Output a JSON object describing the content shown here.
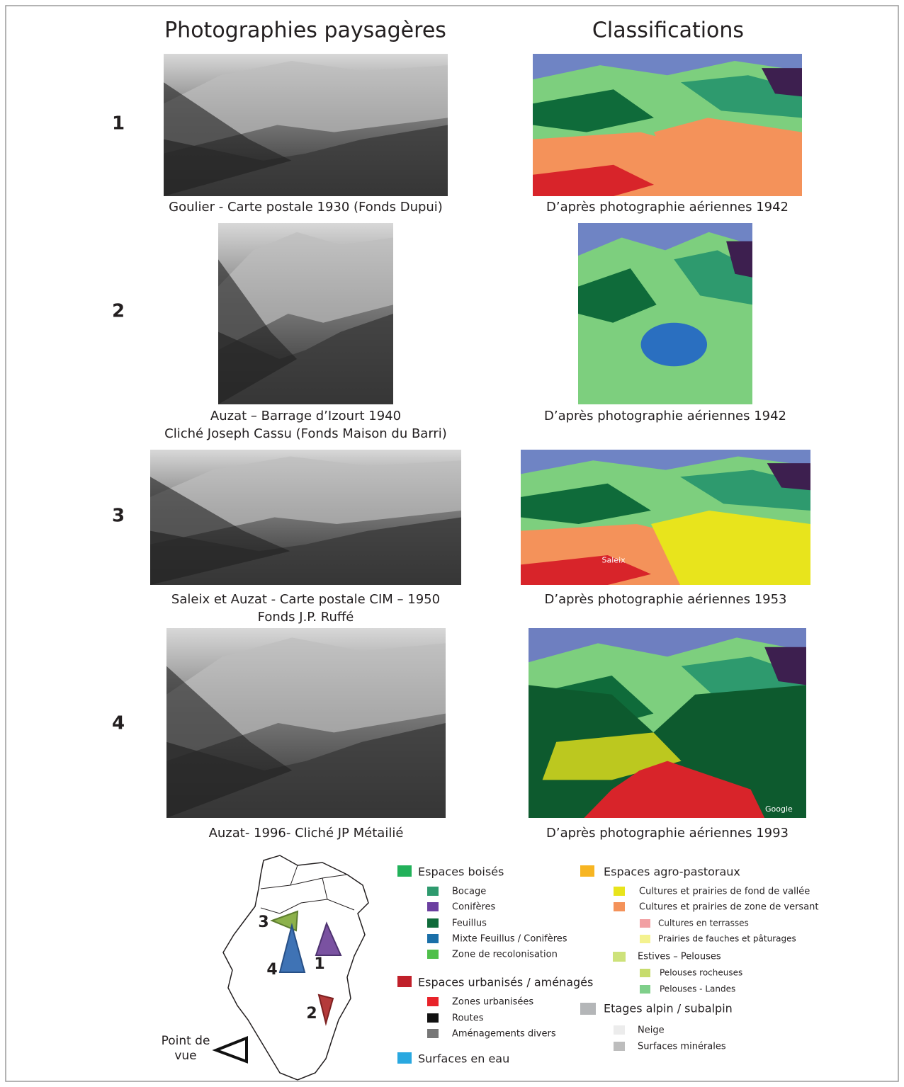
{
  "headers": {
    "photos": "Photographies paysagères",
    "classifications": "Classifications"
  },
  "rows": [
    {
      "number": "1",
      "photo_caption": [
        "Goulier  - Carte postale 1930  (Fonds Dupui)"
      ],
      "classification_caption": "D’après photographie aériennes 1942"
    },
    {
      "number": "2",
      "photo_caption": [
        "Auzat – Barrage d’Izourt 1940",
        "Cliché Joseph Cassu (Fonds Maison du Barri)"
      ],
      "classification_caption": "D’après photographie aériennes 1942"
    },
    {
      "number": "3",
      "photo_caption": [
        "Saleix et Auzat - Carte postale CIM  – 1950",
        "Fonds J.P.  Ruffé"
      ],
      "classification_caption": "D’après photographie aériennes 1953"
    },
    {
      "number": "4",
      "photo_caption": [
        "Auzat-  1996-  Cliché JP Métailié"
      ],
      "classification_caption": "D’après photographie aériennes 1993"
    }
  ],
  "image_labels": {
    "saleix": "Saleix",
    "google": "Google"
  },
  "map": {
    "labels": [
      "3",
      "4",
      "1",
      "2"
    ],
    "point_de_vue": [
      "Point de",
      "vue"
    ]
  },
  "legend": {
    "left": [
      {
        "label": "Espaces boisés",
        "items": [
          "Bocage",
          "Conifères",
          "Feuillus",
          "Mixte Feuillus / Conifères",
          "Zone de recolonisation"
        ]
      },
      {
        "label": "Espaces urbanisés / aménagés",
        "items": [
          "Zones urbanisées",
          "Routes",
          "Aménagements divers"
        ]
      },
      {
        "label": "Surfaces en eau",
        "items": []
      }
    ],
    "right": [
      {
        "label": "Espaces agro-pastoraux",
        "items": [
          "Cultures et prairies de fond de vallée",
          "Cultures et prairies de zone de versant"
        ],
        "subitems": [
          "Cultures en terrasses",
          "Prairies de fauches et pâturages"
        ]
      },
      {
        "label": "Estives – Pelouses",
        "subitems": [
          "Pelouses rocheuses",
          "Pelouses - Landes"
        ]
      },
      {
        "label": "Etages alpin / subalpin",
        "items": [
          "Neige",
          "Surfaces minérales"
        ]
      }
    ]
  }
}
